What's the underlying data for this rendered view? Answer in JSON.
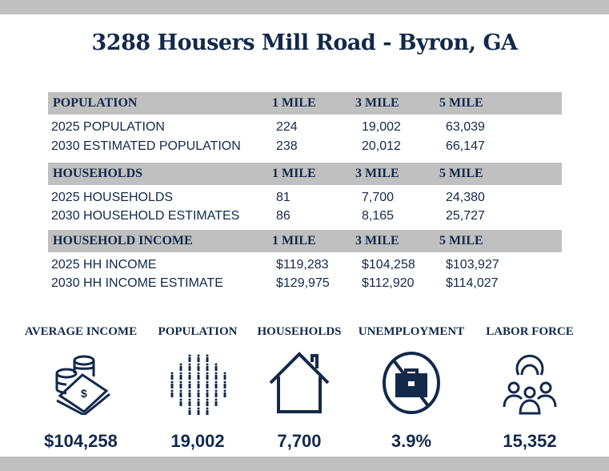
{
  "title": "3288 Housers Mill Road - Byron, GA",
  "sections": [
    {
      "header": "POPULATION",
      "cols": [
        "1 MILE",
        "3 MILE",
        "5 MILE"
      ],
      "rows": [
        [
          "2025 POPULATION",
          "224",
          "19,002",
          "63,039"
        ],
        [
          "2030 ESTIMATED POPULATION",
          "238",
          "20,012",
          "66,147"
        ]
      ]
    },
    {
      "header": "HOUSEHOLDS",
      "cols": [
        "1 MILE",
        "3 MILE",
        "5 MILE"
      ],
      "rows": [
        [
          "2025 HOUSEHOLDS",
          "81",
          "7,700",
          "24,380"
        ],
        [
          "2030 HOUSEHOLD ESTIMATES",
          "86",
          "8,165",
          "25,727"
        ]
      ]
    },
    {
      "header": "HOUSEHOLD INCOME",
      "cols": [
        "1 MILE",
        "3 MILE",
        "5 MILE"
      ],
      "rows": [
        [
          "2025 HH INCOME",
          "$119,283",
          "$104,258",
          "$103,927"
        ],
        [
          "2030 HH INCOME ESTIMATE",
          "$129,975",
          "$112,920",
          "$114,027"
        ]
      ]
    }
  ],
  "stats": [
    {
      "label": "AVERAGE INCOME",
      "value": "$104,258",
      "icon": "money-coins-icon"
    },
    {
      "label": "POPULATION",
      "value": "19,002",
      "icon": "people-crowd-icon"
    },
    {
      "label": "HOUSEHOLDS",
      "value": "7,700",
      "icon": "house-icon"
    },
    {
      "label": "UNEMPLOYMENT",
      "value": "3.9%",
      "icon": "no-briefcase-icon"
    },
    {
      "label": "LABOR FORCE",
      "value": "15,352",
      "icon": "team-gear-icon"
    }
  ],
  "colors": {
    "navy": "#13294b",
    "gray": "#bfc0bf"
  }
}
